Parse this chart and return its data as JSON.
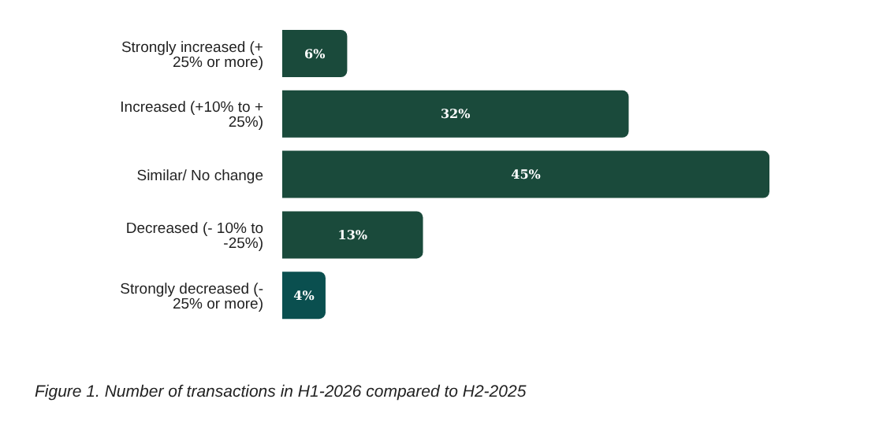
{
  "chart_data": {
    "type": "bar",
    "orientation": "horizontal",
    "categories": [
      "Strongly increased (+ 25% or more)",
      "Increased (+10% to + 25%)",
      "Similar/ No change",
      "Decreased (- 10% to -25%)",
      "Strongly decreased (- 25% or more)"
    ],
    "values": [
      6,
      32,
      45,
      13,
      4
    ],
    "colors": [
      "#1a4a3b",
      "#1a4a3b",
      "#1a4a3b",
      "#1a4a3b",
      "#0a4f4f"
    ],
    "value_labels": [
      "6%",
      "32%",
      "45%",
      "13%",
      "4%"
    ],
    "annotations": [
      "Figure 1. Number of transactions in H1-2026 compared to H2-2025"
    ]
  }
}
